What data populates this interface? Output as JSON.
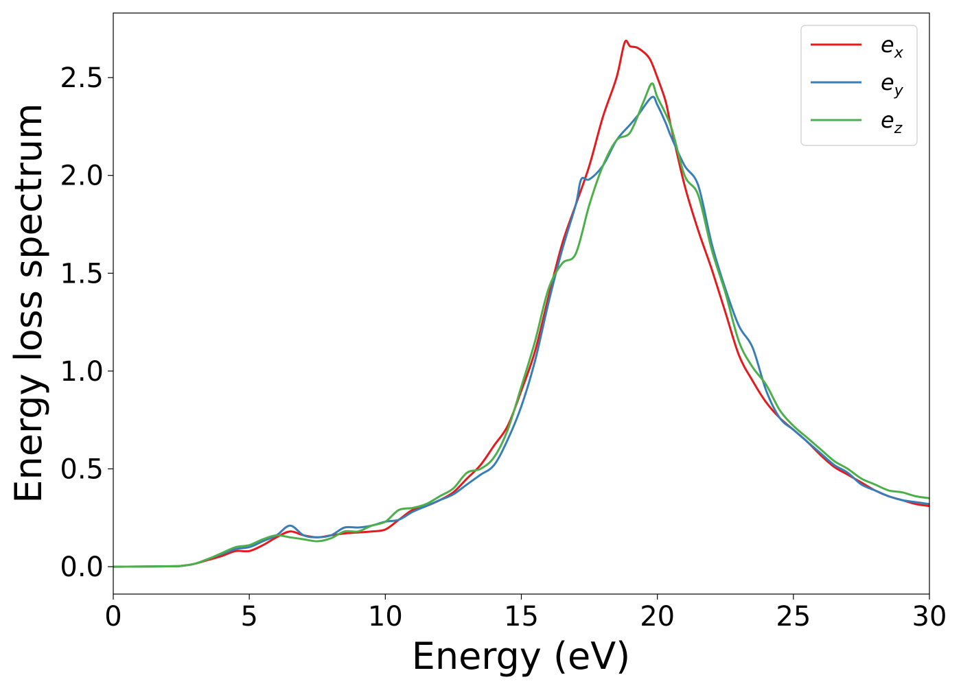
{
  "chart_data": {
    "type": "line",
    "xlabel": "Energy (eV)",
    "ylabel": "Energy loss spectrum",
    "xlim": [
      0,
      30
    ],
    "ylim": [
      -0.14,
      2.83
    ],
    "xticks": [
      0,
      5,
      10,
      15,
      20,
      25,
      30
    ],
    "xtick_labels": [
      "0",
      "5",
      "10",
      "15",
      "20",
      "25",
      "30"
    ],
    "yticks": [
      0.0,
      0.5,
      1.0,
      1.5,
      2.0,
      2.5
    ],
    "ytick_labels": [
      "0.0",
      "0.5",
      "1.0",
      "1.5",
      "2.0",
      "2.5"
    ],
    "grid": false,
    "legend_position": "top-right",
    "series": [
      {
        "name": "e",
        "sub": "x",
        "color": "#e41a1c",
        "points": [
          [
            0,
            0
          ],
          [
            2,
            0.002
          ],
          [
            2.5,
            0.004
          ],
          [
            3,
            0.015
          ],
          [
            3.5,
            0.035
          ],
          [
            4,
            0.055
          ],
          [
            4.5,
            0.08
          ],
          [
            5,
            0.08
          ],
          [
            5.5,
            0.11
          ],
          [
            6,
            0.15
          ],
          [
            6.5,
            0.18
          ],
          [
            7,
            0.16
          ],
          [
            7.5,
            0.15
          ],
          [
            8,
            0.16
          ],
          [
            8.5,
            0.17
          ],
          [
            9,
            0.175
          ],
          [
            9.5,
            0.18
          ],
          [
            10,
            0.19
          ],
          [
            10.5,
            0.24
          ],
          [
            11,
            0.29
          ],
          [
            11.5,
            0.31
          ],
          [
            12,
            0.34
          ],
          [
            12.5,
            0.38
          ],
          [
            13,
            0.45
          ],
          [
            13.5,
            0.52
          ],
          [
            14,
            0.62
          ],
          [
            14.5,
            0.72
          ],
          [
            15,
            0.9
          ],
          [
            15.5,
            1.1
          ],
          [
            16,
            1.38
          ],
          [
            16.5,
            1.65
          ],
          [
            17,
            1.85
          ],
          [
            17.5,
            2.05
          ],
          [
            18,
            2.3
          ],
          [
            18.5,
            2.5
          ],
          [
            18.8,
            2.68
          ],
          [
            19,
            2.66
          ],
          [
            19.3,
            2.65
          ],
          [
            19.7,
            2.6
          ],
          [
            20,
            2.5
          ],
          [
            20.3,
            2.38
          ],
          [
            20.5,
            2.25
          ],
          [
            21,
            1.95
          ],
          [
            21.5,
            1.72
          ],
          [
            22,
            1.52
          ],
          [
            22.5,
            1.3
          ],
          [
            23,
            1.08
          ],
          [
            23.5,
            0.95
          ],
          [
            24,
            0.84
          ],
          [
            24.5,
            0.76
          ],
          [
            25,
            0.7
          ],
          [
            25.5,
            0.64
          ],
          [
            26,
            0.57
          ],
          [
            26.5,
            0.51
          ],
          [
            27,
            0.47
          ],
          [
            27.5,
            0.43
          ],
          [
            28,
            0.39
          ],
          [
            28.5,
            0.36
          ],
          [
            29,
            0.34
          ],
          [
            29.5,
            0.32
          ],
          [
            30,
            0.31
          ]
        ]
      },
      {
        "name": "e",
        "sub": "y",
        "color": "#377eb8",
        "points": [
          [
            0,
            0
          ],
          [
            2,
            0.002
          ],
          [
            2.5,
            0.004
          ],
          [
            3,
            0.015
          ],
          [
            3.5,
            0.04
          ],
          [
            4,
            0.065
          ],
          [
            4.5,
            0.09
          ],
          [
            5,
            0.1
          ],
          [
            5.5,
            0.13
          ],
          [
            6,
            0.16
          ],
          [
            6.5,
            0.21
          ],
          [
            7,
            0.16
          ],
          [
            7.5,
            0.15
          ],
          [
            8,
            0.16
          ],
          [
            8.5,
            0.2
          ],
          [
            9,
            0.2
          ],
          [
            9.5,
            0.21
          ],
          [
            10,
            0.23
          ],
          [
            10.5,
            0.24
          ],
          [
            11,
            0.28
          ],
          [
            11.5,
            0.31
          ],
          [
            12,
            0.34
          ],
          [
            12.5,
            0.37
          ],
          [
            13,
            0.42
          ],
          [
            13.5,
            0.47
          ],
          [
            14,
            0.52
          ],
          [
            14.5,
            0.65
          ],
          [
            15,
            0.82
          ],
          [
            15.5,
            1.05
          ],
          [
            16,
            1.35
          ],
          [
            16.5,
            1.62
          ],
          [
            17,
            1.85
          ],
          [
            17.2,
            1.98
          ],
          [
            17.5,
            1.98
          ],
          [
            18,
            2.05
          ],
          [
            18.5,
            2.18
          ],
          [
            19,
            2.26
          ],
          [
            19.3,
            2.31
          ],
          [
            19.8,
            2.4
          ],
          [
            20,
            2.36
          ],
          [
            20.3,
            2.27
          ],
          [
            20.5,
            2.2
          ],
          [
            21,
            2.05
          ],
          [
            21.5,
            1.95
          ],
          [
            22,
            1.65
          ],
          [
            22.5,
            1.42
          ],
          [
            23,
            1.23
          ],
          [
            23.5,
            1.12
          ],
          [
            24,
            0.9
          ],
          [
            24.5,
            0.76
          ],
          [
            25,
            0.7
          ],
          [
            25.5,
            0.64
          ],
          [
            26,
            0.58
          ],
          [
            26.5,
            0.52
          ],
          [
            27,
            0.48
          ],
          [
            27.5,
            0.42
          ],
          [
            28,
            0.39
          ],
          [
            28.5,
            0.36
          ],
          [
            29,
            0.34
          ],
          [
            29.5,
            0.33
          ],
          [
            30,
            0.32
          ]
        ]
      },
      {
        "name": "e",
        "sub": "z",
        "color": "#4daf4a",
        "points": [
          [
            0,
            0
          ],
          [
            2,
            0.002
          ],
          [
            2.5,
            0.004
          ],
          [
            3,
            0.015
          ],
          [
            3.5,
            0.04
          ],
          [
            4,
            0.07
          ],
          [
            4.5,
            0.1
          ],
          [
            5,
            0.11
          ],
          [
            5.5,
            0.14
          ],
          [
            6,
            0.16
          ],
          [
            6.5,
            0.15
          ],
          [
            7,
            0.14
          ],
          [
            7.5,
            0.13
          ],
          [
            8,
            0.145
          ],
          [
            8.5,
            0.18
          ],
          [
            9,
            0.18
          ],
          [
            9.5,
            0.21
          ],
          [
            10,
            0.23
          ],
          [
            10.5,
            0.29
          ],
          [
            11,
            0.3
          ],
          [
            11.5,
            0.32
          ],
          [
            12,
            0.36
          ],
          [
            12.5,
            0.4
          ],
          [
            13,
            0.48
          ],
          [
            13.5,
            0.5
          ],
          [
            14,
            0.56
          ],
          [
            14.5,
            0.7
          ],
          [
            15,
            0.92
          ],
          [
            15.5,
            1.15
          ],
          [
            16,
            1.42
          ],
          [
            16.5,
            1.55
          ],
          [
            17,
            1.6
          ],
          [
            17.5,
            1.85
          ],
          [
            18,
            2.05
          ],
          [
            18.5,
            2.18
          ],
          [
            19,
            2.22
          ],
          [
            19.5,
            2.38
          ],
          [
            19.8,
            2.47
          ],
          [
            20,
            2.4
          ],
          [
            20.5,
            2.25
          ],
          [
            21,
            2.0
          ],
          [
            21.5,
            1.9
          ],
          [
            22,
            1.62
          ],
          [
            22.5,
            1.4
          ],
          [
            23,
            1.15
          ],
          [
            23.5,
            1.02
          ],
          [
            24,
            0.93
          ],
          [
            24.5,
            0.8
          ],
          [
            25,
            0.72
          ],
          [
            25.5,
            0.66
          ],
          [
            26,
            0.6
          ],
          [
            26.5,
            0.54
          ],
          [
            27,
            0.5
          ],
          [
            27.5,
            0.45
          ],
          [
            28,
            0.42
          ],
          [
            28.5,
            0.39
          ],
          [
            29,
            0.38
          ],
          [
            29.5,
            0.36
          ],
          [
            30,
            0.35
          ]
        ]
      }
    ]
  }
}
